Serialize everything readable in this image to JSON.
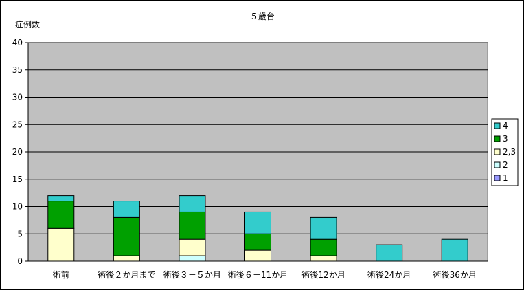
{
  "chart_data": {
    "type": "bar",
    "stacked": true,
    "title": "５歳台",
    "ylabel": "症例数",
    "xlabel": "",
    "ylim": [
      0,
      40
    ],
    "yticks": [
      0,
      5,
      10,
      15,
      20,
      25,
      30,
      35,
      40
    ],
    "grid": true,
    "legend_position": "right",
    "categories": [
      "術前",
      "術後２か月まで",
      "術後３－５か月",
      "術後６－11か月",
      "術後12か月",
      "術後24か月",
      "術後36か月"
    ],
    "series": [
      {
        "name": "1",
        "color": "#9999ff",
        "values": [
          0,
          0,
          0,
          0,
          0,
          0,
          0
        ]
      },
      {
        "name": "2",
        "color": "#ccffff",
        "values": [
          0,
          0,
          1,
          0,
          0,
          0,
          0
        ]
      },
      {
        "name": "2,3",
        "color": "#ffffcc",
        "values": [
          6,
          1,
          3,
          2,
          1,
          0,
          0
        ]
      },
      {
        "name": "3",
        "color": "#00a000",
        "values": [
          5,
          7,
          5,
          3,
          3,
          0,
          0
        ]
      },
      {
        "name": "4",
        "color": "#33cccc",
        "values": [
          1,
          3,
          3,
          4,
          4,
          3,
          4
        ]
      }
    ],
    "legend_order": [
      "4",
      "3",
      "2,3",
      "2",
      "1"
    ]
  },
  "colors": {
    "plot_background": "#c0c0c0",
    "gridline": "#000000"
  }
}
